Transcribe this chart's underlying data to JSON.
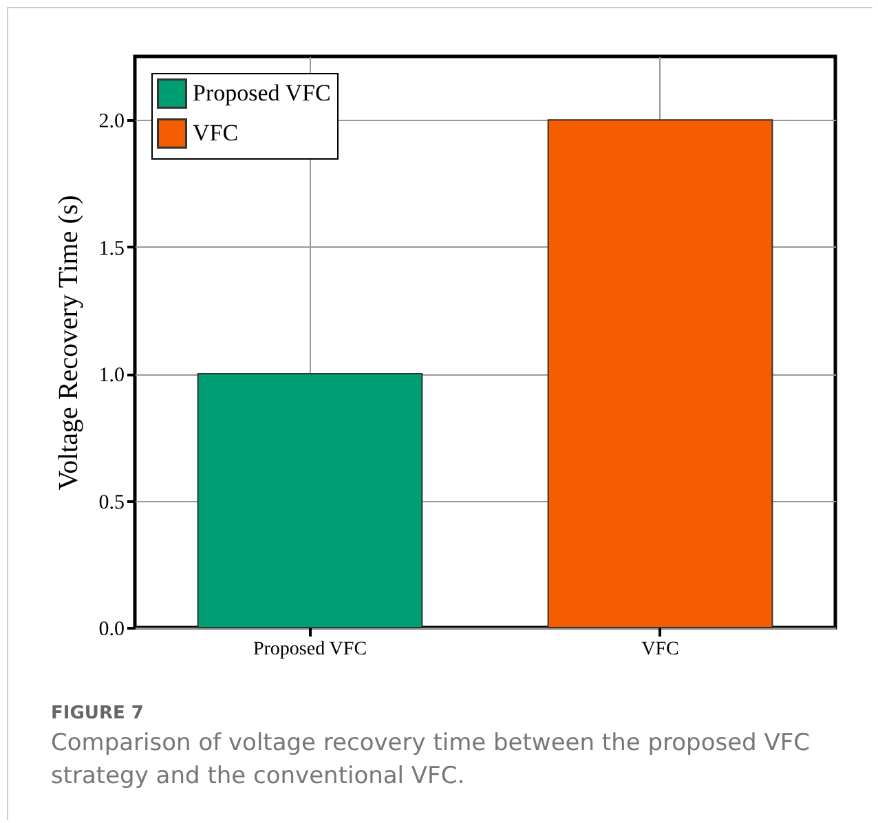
{
  "chart_data": {
    "type": "bar",
    "categories": [
      "Proposed VFC",
      "VFC"
    ],
    "series": [
      {
        "name": "Proposed VFC",
        "color": "#009e73",
        "values": [
          1.0,
          null
        ]
      },
      {
        "name": "VFC",
        "color": "#f55d00",
        "values": [
          null,
          2.0
        ]
      }
    ],
    "ylabel": "Voltage Recovery Time (s)",
    "ylim": [
      0,
      2.25
    ],
    "yticks": [
      {
        "value": 0,
        "label": "0.0"
      },
      0.5,
      {
        "value": 1,
        "label": "1.0"
      },
      1.5,
      {
        "value": 2,
        "label": "2.0"
      }
    ],
    "grid": true,
    "legend": "top left",
    "annotations": [
      "FIGURE 7",
      "Comparison of voltage recovery time between the proposed VFC strategy and the conventional VFC."
    ]
  }
}
